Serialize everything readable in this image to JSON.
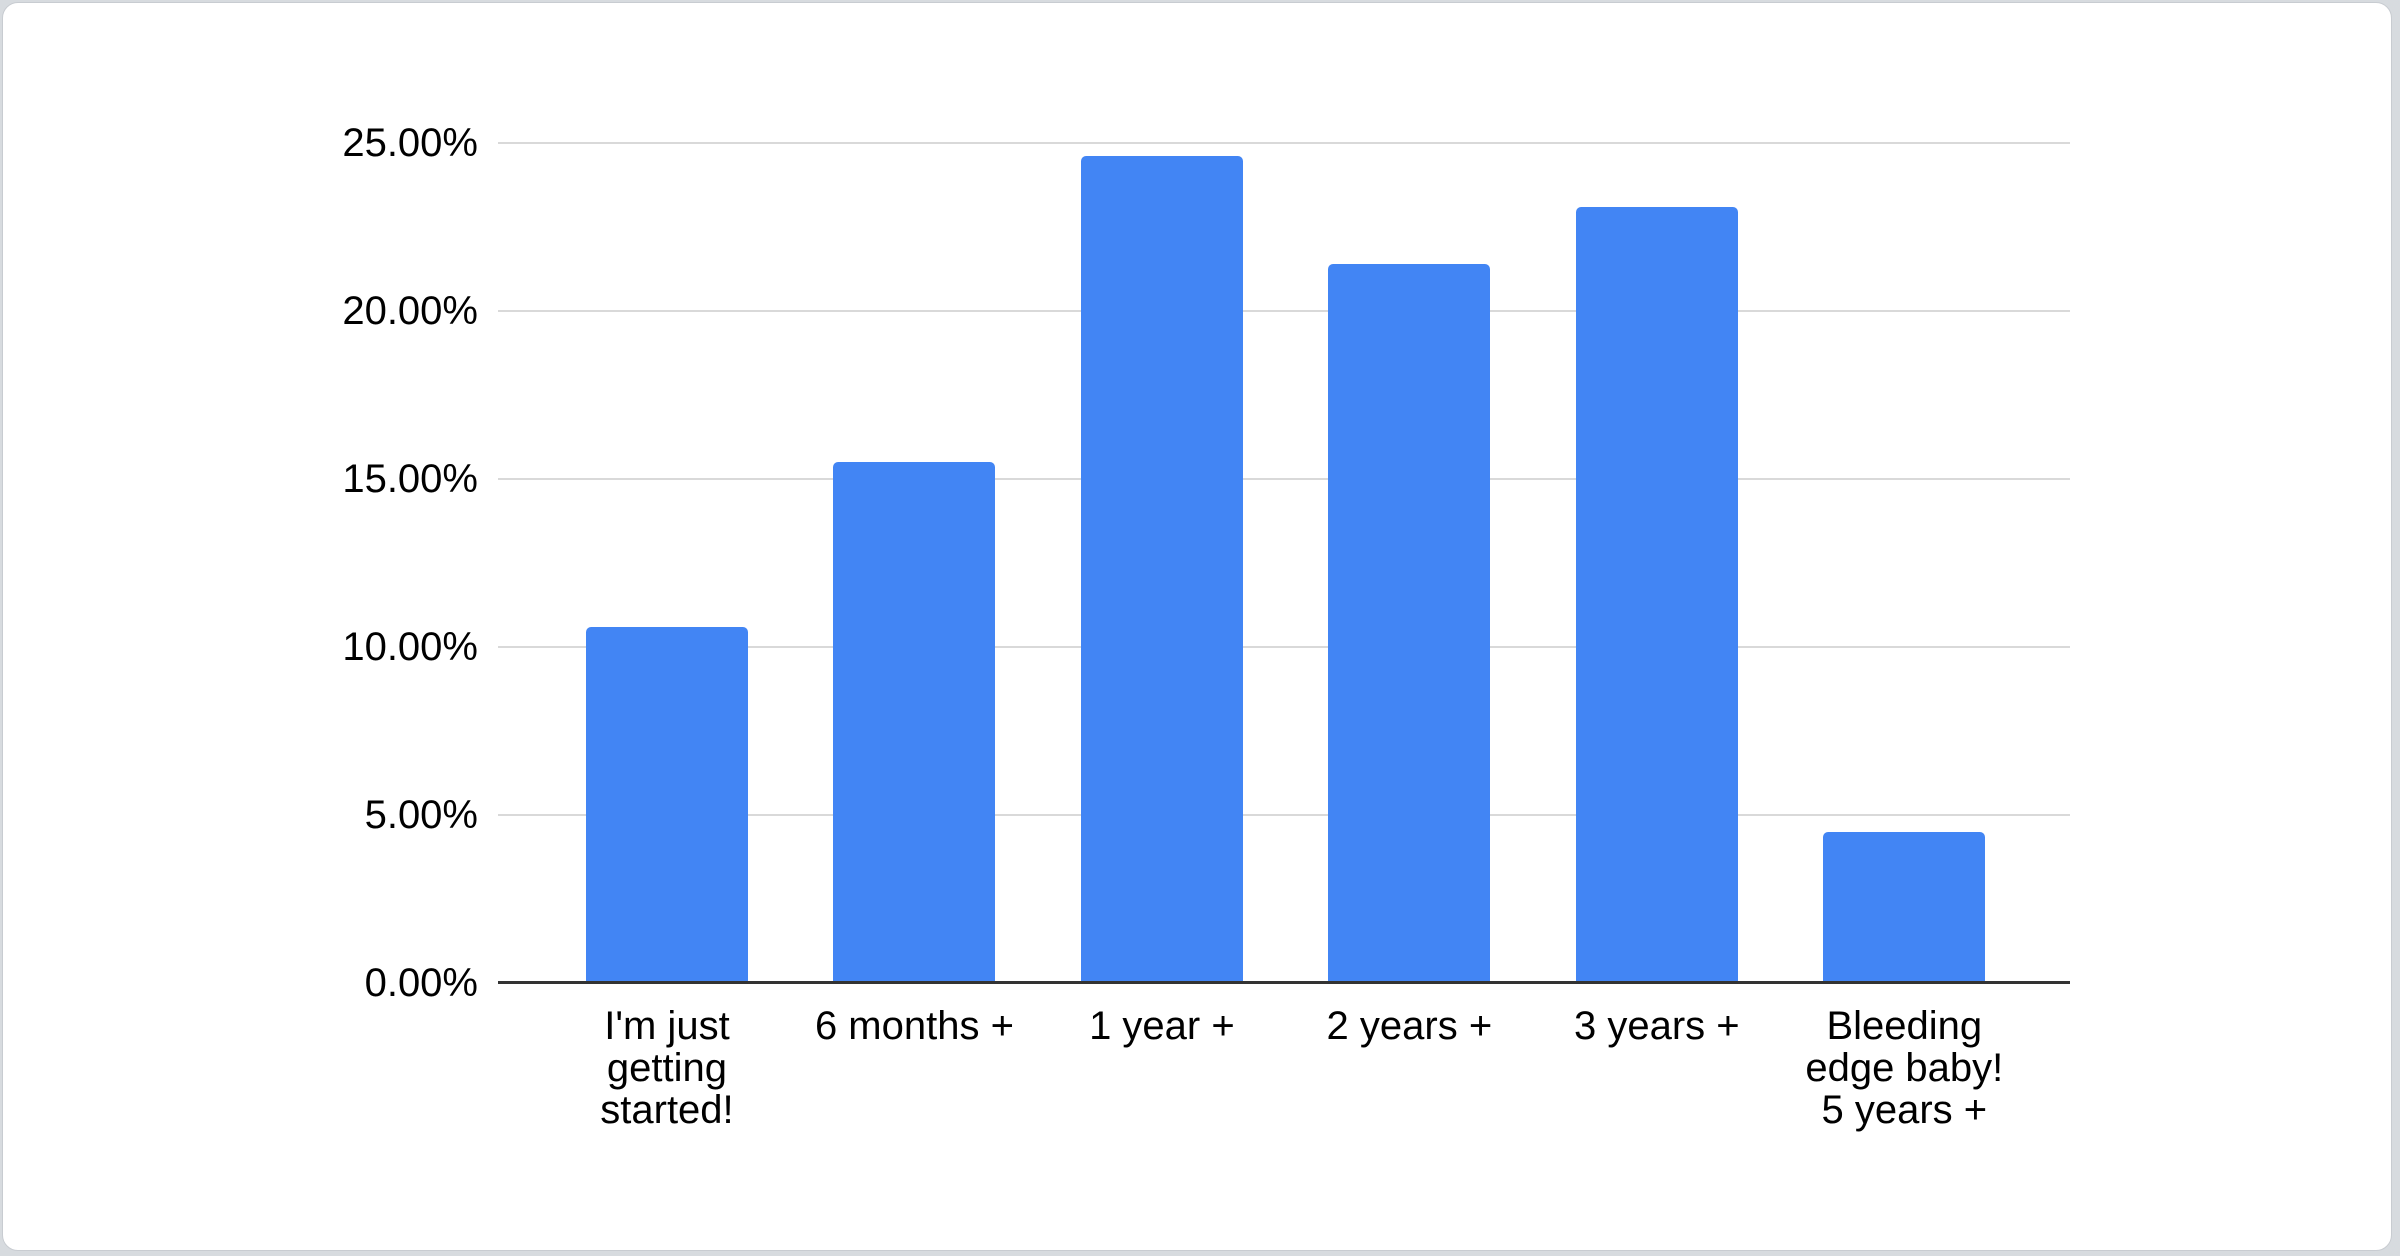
{
  "chart_data": {
    "type": "bar",
    "title": "",
    "categories": [
      "I'm just\ngetting\nstarted!",
      "6 months +",
      "1 year +",
      "2 years +",
      "3 years +",
      "Bleeding\nedge baby!\n5 years +"
    ],
    "values": [
      10.6,
      15.5,
      24.6,
      21.4,
      23.1,
      4.5
    ],
    "value_unit": "%",
    "bar_color": "#4285f4",
    "xlabel": "",
    "ylabel": "",
    "ylim": [
      0,
      25
    ],
    "y_ticks": [
      {
        "value": 0,
        "label": "0.00%"
      },
      {
        "value": 5,
        "label": "5.00%"
      },
      {
        "value": 10,
        "label": "10.00%"
      },
      {
        "value": 15,
        "label": "15.00%"
      },
      {
        "value": 20,
        "label": "20.00%"
      },
      {
        "value": 25,
        "label": "25.00%"
      }
    ],
    "grid": true,
    "legend": "none",
    "colors": {
      "gridline": "#d9d9d9",
      "axis_line": "#333333",
      "label_text": "#000000",
      "card_background": "#ffffff",
      "card_border": "#c8ccd1",
      "page_background": "#d7dbdf"
    }
  }
}
